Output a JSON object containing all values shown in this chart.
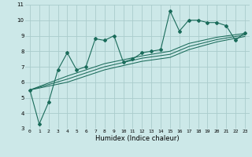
{
  "title": "",
  "xlabel": "Humidex (Indice chaleur)",
  "bg_color": "#cce8e8",
  "grid_color": "#aacccc",
  "line_color": "#1a6b5a",
  "xlim": [
    -0.5,
    23.5
  ],
  "ylim": [
    3,
    11
  ],
  "xticks": [
    0,
    1,
    2,
    3,
    4,
    5,
    6,
    7,
    8,
    9,
    10,
    11,
    12,
    13,
    14,
    15,
    16,
    17,
    18,
    19,
    20,
    21,
    22,
    23
  ],
  "yticks": [
    3,
    4,
    5,
    6,
    7,
    8,
    9,
    10,
    11
  ],
  "series1": [
    [
      0,
      5.5
    ],
    [
      1,
      3.3
    ],
    [
      2,
      4.7
    ],
    [
      3,
      6.8
    ],
    [
      4,
      7.9
    ],
    [
      5,
      6.8
    ],
    [
      6,
      7.0
    ],
    [
      7,
      8.8
    ],
    [
      8,
      8.7
    ],
    [
      9,
      9.0
    ],
    [
      10,
      7.3
    ],
    [
      11,
      7.5
    ],
    [
      12,
      7.9
    ],
    [
      13,
      8.0
    ],
    [
      14,
      8.1
    ],
    [
      15,
      10.6
    ],
    [
      16,
      9.3
    ],
    [
      17,
      10.0
    ],
    [
      18,
      10.0
    ],
    [
      19,
      9.85
    ],
    [
      20,
      9.85
    ],
    [
      21,
      9.65
    ],
    [
      22,
      8.7
    ],
    [
      23,
      9.2
    ]
  ],
  "series2": [
    [
      0,
      5.5
    ],
    [
      4,
      6.4
    ],
    [
      8,
      7.2
    ],
    [
      12,
      7.7
    ],
    [
      15,
      8.0
    ],
    [
      17,
      8.5
    ],
    [
      20,
      8.9
    ],
    [
      23,
      9.15
    ]
  ],
  "series3": [
    [
      0,
      5.5
    ],
    [
      4,
      6.2
    ],
    [
      8,
      7.0
    ],
    [
      12,
      7.55
    ],
    [
      15,
      7.8
    ],
    [
      17,
      8.3
    ],
    [
      20,
      8.75
    ],
    [
      23,
      9.05
    ]
  ],
  "series4": [
    [
      0,
      5.5
    ],
    [
      4,
      6.0
    ],
    [
      8,
      6.8
    ],
    [
      12,
      7.35
    ],
    [
      15,
      7.6
    ],
    [
      17,
      8.1
    ],
    [
      20,
      8.6
    ],
    [
      23,
      8.95
    ]
  ],
  "xlabel_fontsize": 6,
  "tick_fontsize": 4.5
}
